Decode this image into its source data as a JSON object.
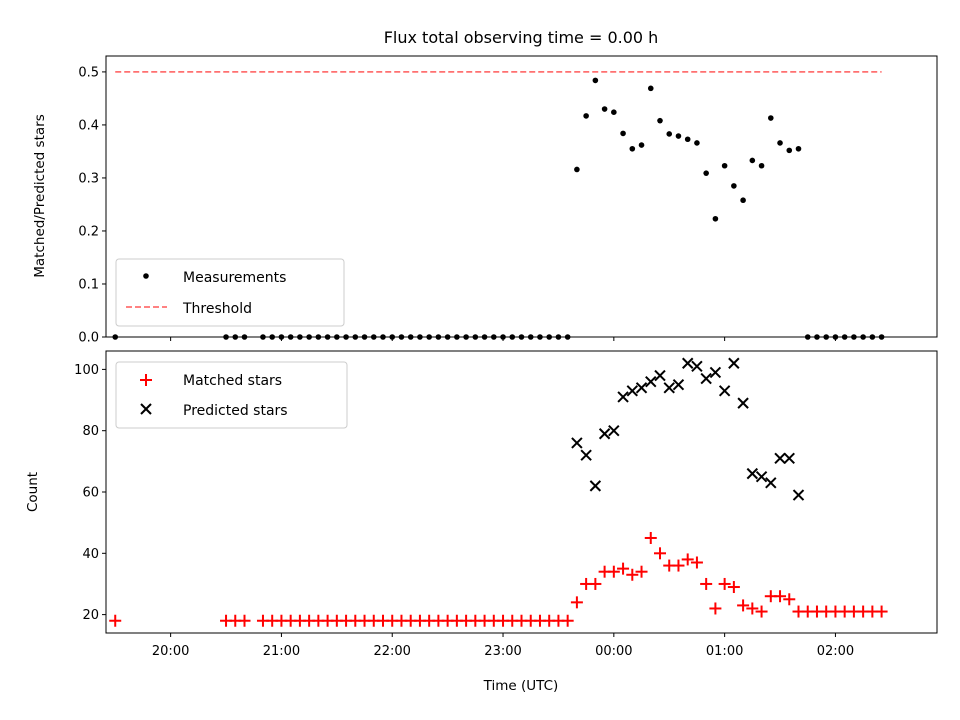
{
  "figure": {
    "title": "Flux total observing time = 0.00 h"
  },
  "chart_data": [
    {
      "type": "scatter",
      "title": "Flux total observing time = 0.00 h",
      "xlabel": "",
      "ylabel": "Matched/Predicted stars",
      "ylim": [
        0,
        0.53
      ],
      "yticks": [
        "0.0",
        "0.1",
        "0.2",
        "0.3",
        "0.4",
        "0.5"
      ],
      "legend_position": "lower-left",
      "x_is_time": true,
      "xlim": [
        "19:25",
        "02:55"
      ],
      "series": [
        {
          "name": "Measurements",
          "marker": "dot",
          "color": "#000000",
          "points": [
            [
              "19:30",
              0.0
            ],
            [
              "20:30",
              0.0
            ],
            [
              "20:35",
              0.0
            ],
            [
              "20:40",
              0.0
            ],
            [
              "20:50",
              0.0
            ],
            [
              "20:55",
              0.0
            ],
            [
              "21:00",
              0.0
            ],
            [
              "21:05",
              0.0
            ],
            [
              "21:10",
              0.0
            ],
            [
              "21:15",
              0.0
            ],
            [
              "21:20",
              0.0
            ],
            [
              "21:25",
              0.0
            ],
            [
              "21:30",
              0.0
            ],
            [
              "21:35",
              0.0
            ],
            [
              "21:40",
              0.0
            ],
            [
              "21:45",
              0.0
            ],
            [
              "21:50",
              0.0
            ],
            [
              "21:55",
              0.0
            ],
            [
              "22:00",
              0.0
            ],
            [
              "22:05",
              0.0
            ],
            [
              "22:10",
              0.0
            ],
            [
              "22:15",
              0.0
            ],
            [
              "22:20",
              0.0
            ],
            [
              "22:25",
              0.0
            ],
            [
              "22:30",
              0.0
            ],
            [
              "22:35",
              0.0
            ],
            [
              "22:40",
              0.0
            ],
            [
              "22:45",
              0.0
            ],
            [
              "22:50",
              0.0
            ],
            [
              "22:55",
              0.0
            ],
            [
              "23:00",
              0.0
            ],
            [
              "23:05",
              0.0
            ],
            [
              "23:10",
              0.0
            ],
            [
              "23:15",
              0.0
            ],
            [
              "23:20",
              0.0
            ],
            [
              "23:25",
              0.0
            ],
            [
              "23:30",
              0.0
            ],
            [
              "23:35",
              0.0
            ],
            [
              "23:40",
              0.316
            ],
            [
              "23:45",
              0.417
            ],
            [
              "23:50",
              0.484
            ],
            [
              "23:55",
              0.43
            ],
            [
              "00:00",
              0.424
            ],
            [
              "00:05",
              0.384
            ],
            [
              "00:10",
              0.355
            ],
            [
              "00:15",
              0.362
            ],
            [
              "00:20",
              0.469
            ],
            [
              "00:25",
              0.408
            ],
            [
              "00:30",
              0.383
            ],
            [
              "00:35",
              0.379
            ],
            [
              "00:40",
              0.373
            ],
            [
              "00:45",
              0.366
            ],
            [
              "00:50",
              0.309
            ],
            [
              "00:55",
              0.223
            ],
            [
              "01:00",
              0.323
            ],
            [
              "01:05",
              0.285
            ],
            [
              "01:10",
              0.258
            ],
            [
              "01:15",
              0.333
            ],
            [
              "01:20",
              0.323
            ],
            [
              "01:25",
              0.413
            ],
            [
              "01:30",
              0.366
            ],
            [
              "01:35",
              0.352
            ],
            [
              "01:40",
              0.355
            ],
            [
              "01:45",
              0.0
            ],
            [
              "01:50",
              0.0
            ],
            [
              "01:55",
              0.0
            ],
            [
              "02:00",
              0.0
            ],
            [
              "02:05",
              0.0
            ],
            [
              "02:10",
              0.0
            ],
            [
              "02:15",
              0.0
            ],
            [
              "02:20",
              0.0
            ],
            [
              "02:25",
              0.0
            ]
          ]
        },
        {
          "name": "Threshold",
          "line": "dashed",
          "color": "#ff7070",
          "points": [
            [
              "19:30",
              0.5
            ],
            [
              "02:25",
              0.5
            ]
          ]
        }
      ]
    },
    {
      "type": "scatter",
      "xlabel": "Time (UTC)",
      "ylabel": "Count",
      "ylim": [
        14,
        106
      ],
      "yticks": [
        "20",
        "40",
        "60",
        "80",
        "100"
      ],
      "xticks": [
        "20:00",
        "21:00",
        "22:00",
        "23:00",
        "00:00",
        "01:00",
        "02:00"
      ],
      "legend_position": "upper-left",
      "x_is_time": true,
      "xlim": [
        "19:25",
        "02:55"
      ],
      "series": [
        {
          "name": "Matched stars",
          "marker": "plus",
          "color": "#ff0000",
          "points": [
            [
              "19:30",
              18
            ],
            [
              "20:30",
              18
            ],
            [
              "20:35",
              18
            ],
            [
              "20:40",
              18
            ],
            [
              "20:50",
              18
            ],
            [
              "20:55",
              18
            ],
            [
              "21:00",
              18
            ],
            [
              "21:05",
              18
            ],
            [
              "21:10",
              18
            ],
            [
              "21:15",
              18
            ],
            [
              "21:20",
              18
            ],
            [
              "21:25",
              18
            ],
            [
              "21:30",
              18
            ],
            [
              "21:35",
              18
            ],
            [
              "21:40",
              18
            ],
            [
              "21:45",
              18
            ],
            [
              "21:50",
              18
            ],
            [
              "21:55",
              18
            ],
            [
              "22:00",
              18
            ],
            [
              "22:05",
              18
            ],
            [
              "22:10",
              18
            ],
            [
              "22:15",
              18
            ],
            [
              "22:20",
              18
            ],
            [
              "22:25",
              18
            ],
            [
              "22:30",
              18
            ],
            [
              "22:35",
              18
            ],
            [
              "22:40",
              18
            ],
            [
              "22:45",
              18
            ],
            [
              "22:50",
              18
            ],
            [
              "22:55",
              18
            ],
            [
              "23:00",
              18
            ],
            [
              "23:05",
              18
            ],
            [
              "23:10",
              18
            ],
            [
              "23:15",
              18
            ],
            [
              "23:20",
              18
            ],
            [
              "23:25",
              18
            ],
            [
              "23:30",
              18
            ],
            [
              "23:35",
              18
            ],
            [
              "23:40",
              24
            ],
            [
              "23:45",
              30
            ],
            [
              "23:50",
              30
            ],
            [
              "23:55",
              34
            ],
            [
              "00:00",
              34
            ],
            [
              "00:05",
              35
            ],
            [
              "00:10",
              33
            ],
            [
              "00:15",
              34
            ],
            [
              "00:20",
              45
            ],
            [
              "00:25",
              40
            ],
            [
              "00:30",
              36
            ],
            [
              "00:35",
              36
            ],
            [
              "00:40",
              38
            ],
            [
              "00:45",
              37
            ],
            [
              "00:50",
              30
            ],
            [
              "00:55",
              22
            ],
            [
              "01:00",
              30
            ],
            [
              "01:05",
              29
            ],
            [
              "01:10",
              23
            ],
            [
              "01:15",
              22
            ],
            [
              "01:20",
              21
            ],
            [
              "01:25",
              26
            ],
            [
              "01:30",
              26
            ],
            [
              "01:35",
              25
            ],
            [
              "01:40",
              21
            ],
            [
              "01:45",
              21
            ],
            [
              "01:50",
              21
            ],
            [
              "01:55",
              21
            ],
            [
              "02:00",
              21
            ],
            [
              "02:05",
              21
            ],
            [
              "02:10",
              21
            ],
            [
              "02:15",
              21
            ],
            [
              "02:20",
              21
            ],
            [
              "02:25",
              21
            ]
          ]
        },
        {
          "name": "Predicted stars",
          "marker": "x",
          "color": "#000000",
          "points": [
            [
              "23:40",
              76
            ],
            [
              "23:45",
              72
            ],
            [
              "23:50",
              62
            ],
            [
              "23:55",
              79
            ],
            [
              "00:00",
              80
            ],
            [
              "00:05",
              91
            ],
            [
              "00:10",
              93
            ],
            [
              "00:15",
              94
            ],
            [
              "00:20",
              96
            ],
            [
              "00:25",
              98
            ],
            [
              "00:30",
              94
            ],
            [
              "00:35",
              95
            ],
            [
              "00:40",
              102
            ],
            [
              "00:45",
              101
            ],
            [
              "00:50",
              97
            ],
            [
              "00:55",
              99
            ],
            [
              "01:00",
              93
            ],
            [
              "01:05",
              102
            ],
            [
              "01:10",
              89
            ],
            [
              "01:15",
              66
            ],
            [
              "01:20",
              65
            ],
            [
              "01:25",
              63
            ],
            [
              "01:30",
              71
            ],
            [
              "01:35",
              71
            ],
            [
              "01:40",
              59
            ]
          ]
        }
      ]
    }
  ]
}
